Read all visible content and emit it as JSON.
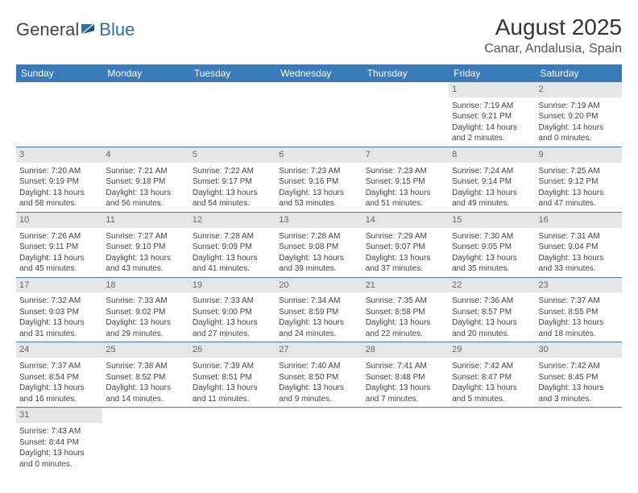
{
  "logo": {
    "general": "General",
    "blue": "Blue"
  },
  "header": {
    "title": "August 2025",
    "location": "Canar, Andalusia, Spain"
  },
  "colors": {
    "headerBg": "#3a7ab8",
    "headerText": "#ffffff",
    "dayBarBg": "#e6e6e6",
    "cellBorder": "#3a7ab8",
    "logoBlue": "#2f6fa7"
  },
  "weekdays": [
    "Sunday",
    "Monday",
    "Tuesday",
    "Wednesday",
    "Thursday",
    "Friday",
    "Saturday"
  ],
  "weeks": [
    [
      null,
      null,
      null,
      null,
      null,
      {
        "n": "1",
        "sr": "Sunrise: 7:19 AM",
        "ss": "Sunset: 9:21 PM",
        "dl1": "Daylight: 14 hours",
        "dl2": "and 2 minutes."
      },
      {
        "n": "2",
        "sr": "Sunrise: 7:19 AM",
        "ss": "Sunset: 9:20 PM",
        "dl1": "Daylight: 14 hours",
        "dl2": "and 0 minutes."
      }
    ],
    [
      {
        "n": "3",
        "sr": "Sunrise: 7:20 AM",
        "ss": "Sunset: 9:19 PM",
        "dl1": "Daylight: 13 hours",
        "dl2": "and 58 minutes."
      },
      {
        "n": "4",
        "sr": "Sunrise: 7:21 AM",
        "ss": "Sunset: 9:18 PM",
        "dl1": "Daylight: 13 hours",
        "dl2": "and 56 minutes."
      },
      {
        "n": "5",
        "sr": "Sunrise: 7:22 AM",
        "ss": "Sunset: 9:17 PM",
        "dl1": "Daylight: 13 hours",
        "dl2": "and 54 minutes."
      },
      {
        "n": "6",
        "sr": "Sunrise: 7:23 AM",
        "ss": "Sunset: 9:16 PM",
        "dl1": "Daylight: 13 hours",
        "dl2": "and 53 minutes."
      },
      {
        "n": "7",
        "sr": "Sunrise: 7:23 AM",
        "ss": "Sunset: 9:15 PM",
        "dl1": "Daylight: 13 hours",
        "dl2": "and 51 minutes."
      },
      {
        "n": "8",
        "sr": "Sunrise: 7:24 AM",
        "ss": "Sunset: 9:14 PM",
        "dl1": "Daylight: 13 hours",
        "dl2": "and 49 minutes."
      },
      {
        "n": "9",
        "sr": "Sunrise: 7:25 AM",
        "ss": "Sunset: 9:12 PM",
        "dl1": "Daylight: 13 hours",
        "dl2": "and 47 minutes."
      }
    ],
    [
      {
        "n": "10",
        "sr": "Sunrise: 7:26 AM",
        "ss": "Sunset: 9:11 PM",
        "dl1": "Daylight: 13 hours",
        "dl2": "and 45 minutes."
      },
      {
        "n": "11",
        "sr": "Sunrise: 7:27 AM",
        "ss": "Sunset: 9:10 PM",
        "dl1": "Daylight: 13 hours",
        "dl2": "and 43 minutes."
      },
      {
        "n": "12",
        "sr": "Sunrise: 7:28 AM",
        "ss": "Sunset: 9:09 PM",
        "dl1": "Daylight: 13 hours",
        "dl2": "and 41 minutes."
      },
      {
        "n": "13",
        "sr": "Sunrise: 7:28 AM",
        "ss": "Sunset: 9:08 PM",
        "dl1": "Daylight: 13 hours",
        "dl2": "and 39 minutes."
      },
      {
        "n": "14",
        "sr": "Sunrise: 7:29 AM",
        "ss": "Sunset: 9:07 PM",
        "dl1": "Daylight: 13 hours",
        "dl2": "and 37 minutes."
      },
      {
        "n": "15",
        "sr": "Sunrise: 7:30 AM",
        "ss": "Sunset: 9:05 PM",
        "dl1": "Daylight: 13 hours",
        "dl2": "and 35 minutes."
      },
      {
        "n": "16",
        "sr": "Sunrise: 7:31 AM",
        "ss": "Sunset: 9:04 PM",
        "dl1": "Daylight: 13 hours",
        "dl2": "and 33 minutes."
      }
    ],
    [
      {
        "n": "17",
        "sr": "Sunrise: 7:32 AM",
        "ss": "Sunset: 9:03 PM",
        "dl1": "Daylight: 13 hours",
        "dl2": "and 31 minutes."
      },
      {
        "n": "18",
        "sr": "Sunrise: 7:33 AM",
        "ss": "Sunset: 9:02 PM",
        "dl1": "Daylight: 13 hours",
        "dl2": "and 29 minutes."
      },
      {
        "n": "19",
        "sr": "Sunrise: 7:33 AM",
        "ss": "Sunset: 9:00 PM",
        "dl1": "Daylight: 13 hours",
        "dl2": "and 27 minutes."
      },
      {
        "n": "20",
        "sr": "Sunrise: 7:34 AM",
        "ss": "Sunset: 8:59 PM",
        "dl1": "Daylight: 13 hours",
        "dl2": "and 24 minutes."
      },
      {
        "n": "21",
        "sr": "Sunrise: 7:35 AM",
        "ss": "Sunset: 8:58 PM",
        "dl1": "Daylight: 13 hours",
        "dl2": "and 22 minutes."
      },
      {
        "n": "22",
        "sr": "Sunrise: 7:36 AM",
        "ss": "Sunset: 8:57 PM",
        "dl1": "Daylight: 13 hours",
        "dl2": "and 20 minutes."
      },
      {
        "n": "23",
        "sr": "Sunrise: 7:37 AM",
        "ss": "Sunset: 8:55 PM",
        "dl1": "Daylight: 13 hours",
        "dl2": "and 18 minutes."
      }
    ],
    [
      {
        "n": "24",
        "sr": "Sunrise: 7:37 AM",
        "ss": "Sunset: 8:54 PM",
        "dl1": "Daylight: 13 hours",
        "dl2": "and 16 minutes."
      },
      {
        "n": "25",
        "sr": "Sunrise: 7:38 AM",
        "ss": "Sunset: 8:52 PM",
        "dl1": "Daylight: 13 hours",
        "dl2": "and 14 minutes."
      },
      {
        "n": "26",
        "sr": "Sunrise: 7:39 AM",
        "ss": "Sunset: 8:51 PM",
        "dl1": "Daylight: 13 hours",
        "dl2": "and 11 minutes."
      },
      {
        "n": "27",
        "sr": "Sunrise: 7:40 AM",
        "ss": "Sunset: 8:50 PM",
        "dl1": "Daylight: 13 hours",
        "dl2": "and 9 minutes."
      },
      {
        "n": "28",
        "sr": "Sunrise: 7:41 AM",
        "ss": "Sunset: 8:48 PM",
        "dl1": "Daylight: 13 hours",
        "dl2": "and 7 minutes."
      },
      {
        "n": "29",
        "sr": "Sunrise: 7:42 AM",
        "ss": "Sunset: 8:47 PM",
        "dl1": "Daylight: 13 hours",
        "dl2": "and 5 minutes."
      },
      {
        "n": "30",
        "sr": "Sunrise: 7:42 AM",
        "ss": "Sunset: 8:45 PM",
        "dl1": "Daylight: 13 hours",
        "dl2": "and 3 minutes."
      }
    ],
    [
      {
        "n": "31",
        "sr": "Sunrise: 7:43 AM",
        "ss": "Sunset: 8:44 PM",
        "dl1": "Daylight: 13 hours",
        "dl2": "and 0 minutes."
      },
      null,
      null,
      null,
      null,
      null,
      null
    ]
  ]
}
